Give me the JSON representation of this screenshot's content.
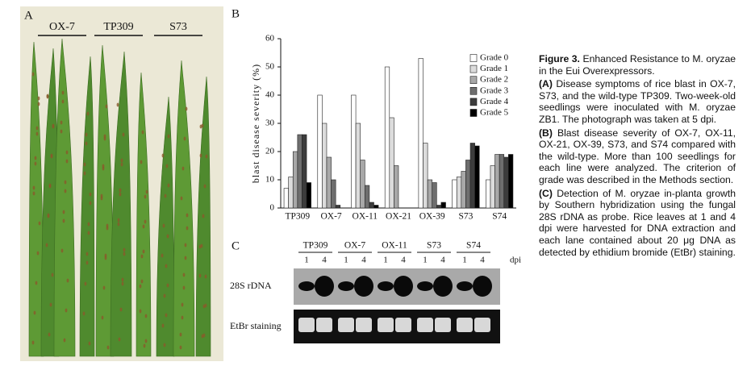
{
  "panel_a": {
    "label": "A",
    "groups": [
      "OX-7",
      "TP309",
      "S73"
    ]
  },
  "chart_data": {
    "type": "bar",
    "panel_label": "B",
    "ylabel": "blast disease severity (%)",
    "categories": [
      "TP309",
      "OX-7",
      "OX-11",
      "OX-21",
      "OX-39",
      "S73",
      "S74"
    ],
    "series": [
      {
        "name": "Grade 0",
        "color": "#ffffff",
        "values": [
          7,
          40,
          40,
          50,
          53,
          10,
          10
        ]
      },
      {
        "name": "Grade 1",
        "color": "#dcdcdc",
        "values": [
          11,
          30,
          30,
          32,
          23,
          11,
          15
        ]
      },
      {
        "name": "Grade 2",
        "color": "#a8a8a8",
        "values": [
          20,
          18,
          17,
          15,
          10,
          13,
          19
        ]
      },
      {
        "name": "Grade 3",
        "color": "#6e6e6e",
        "values": [
          26,
          10,
          8,
          0,
          9,
          17,
          19
        ]
      },
      {
        "name": "Grade 4",
        "color": "#3c3c3c",
        "values": [
          26,
          1,
          2,
          0,
          1,
          23,
          18
        ]
      },
      {
        "name": "Grade 5",
        "color": "#000000",
        "values": [
          9,
          0,
          1,
          0,
          2,
          22,
          19
        ]
      }
    ],
    "ylim": [
      0,
      60
    ],
    "yticks": [
      0,
      10,
      20,
      30,
      40,
      50,
      60
    ],
    "grid": false
  },
  "panel_c": {
    "label": "C",
    "groups": [
      "TP309",
      "OX-7",
      "OX-11",
      "S73",
      "S74"
    ],
    "lanes": [
      "1",
      "4",
      "1",
      "4",
      "1",
      "4",
      "1",
      "4",
      "1",
      "4"
    ],
    "unit": "dpi",
    "rows": [
      "28S rDNA",
      "EtBr staining"
    ]
  },
  "caption": {
    "figure": "Figure 3.",
    "title": "Enhanced Resistance to M. oryzae in the Eui Overexpressors.",
    "paragraphs": [
      {
        "label": "(A)",
        "text": "Disease symptoms of rice blast in OX-7, S73, and the wild-type TP309. Two-week-old seedlings were inoculated with M. oryzae ZB1. The photograph was taken at 5 dpi."
      },
      {
        "label": "(B)",
        "text": "Blast disease severity of OX-7, OX-11, OX-21, OX-39, S73, and S74 compared with the wild-type. More than 100 seedlings for each line were analyzed. The criterion of grade was described in the Methods section."
      },
      {
        "label": "(C)",
        "text": "Detection of M. oryzae in-planta growth by Southern hybridization using the fungal 28S rDNA as probe. Rice leaves at 1 and 4 dpi were harvested for DNA extraction and each lane contained about 20 μg DNA as detected by ethidium bromide (EtBr) staining."
      }
    ]
  }
}
